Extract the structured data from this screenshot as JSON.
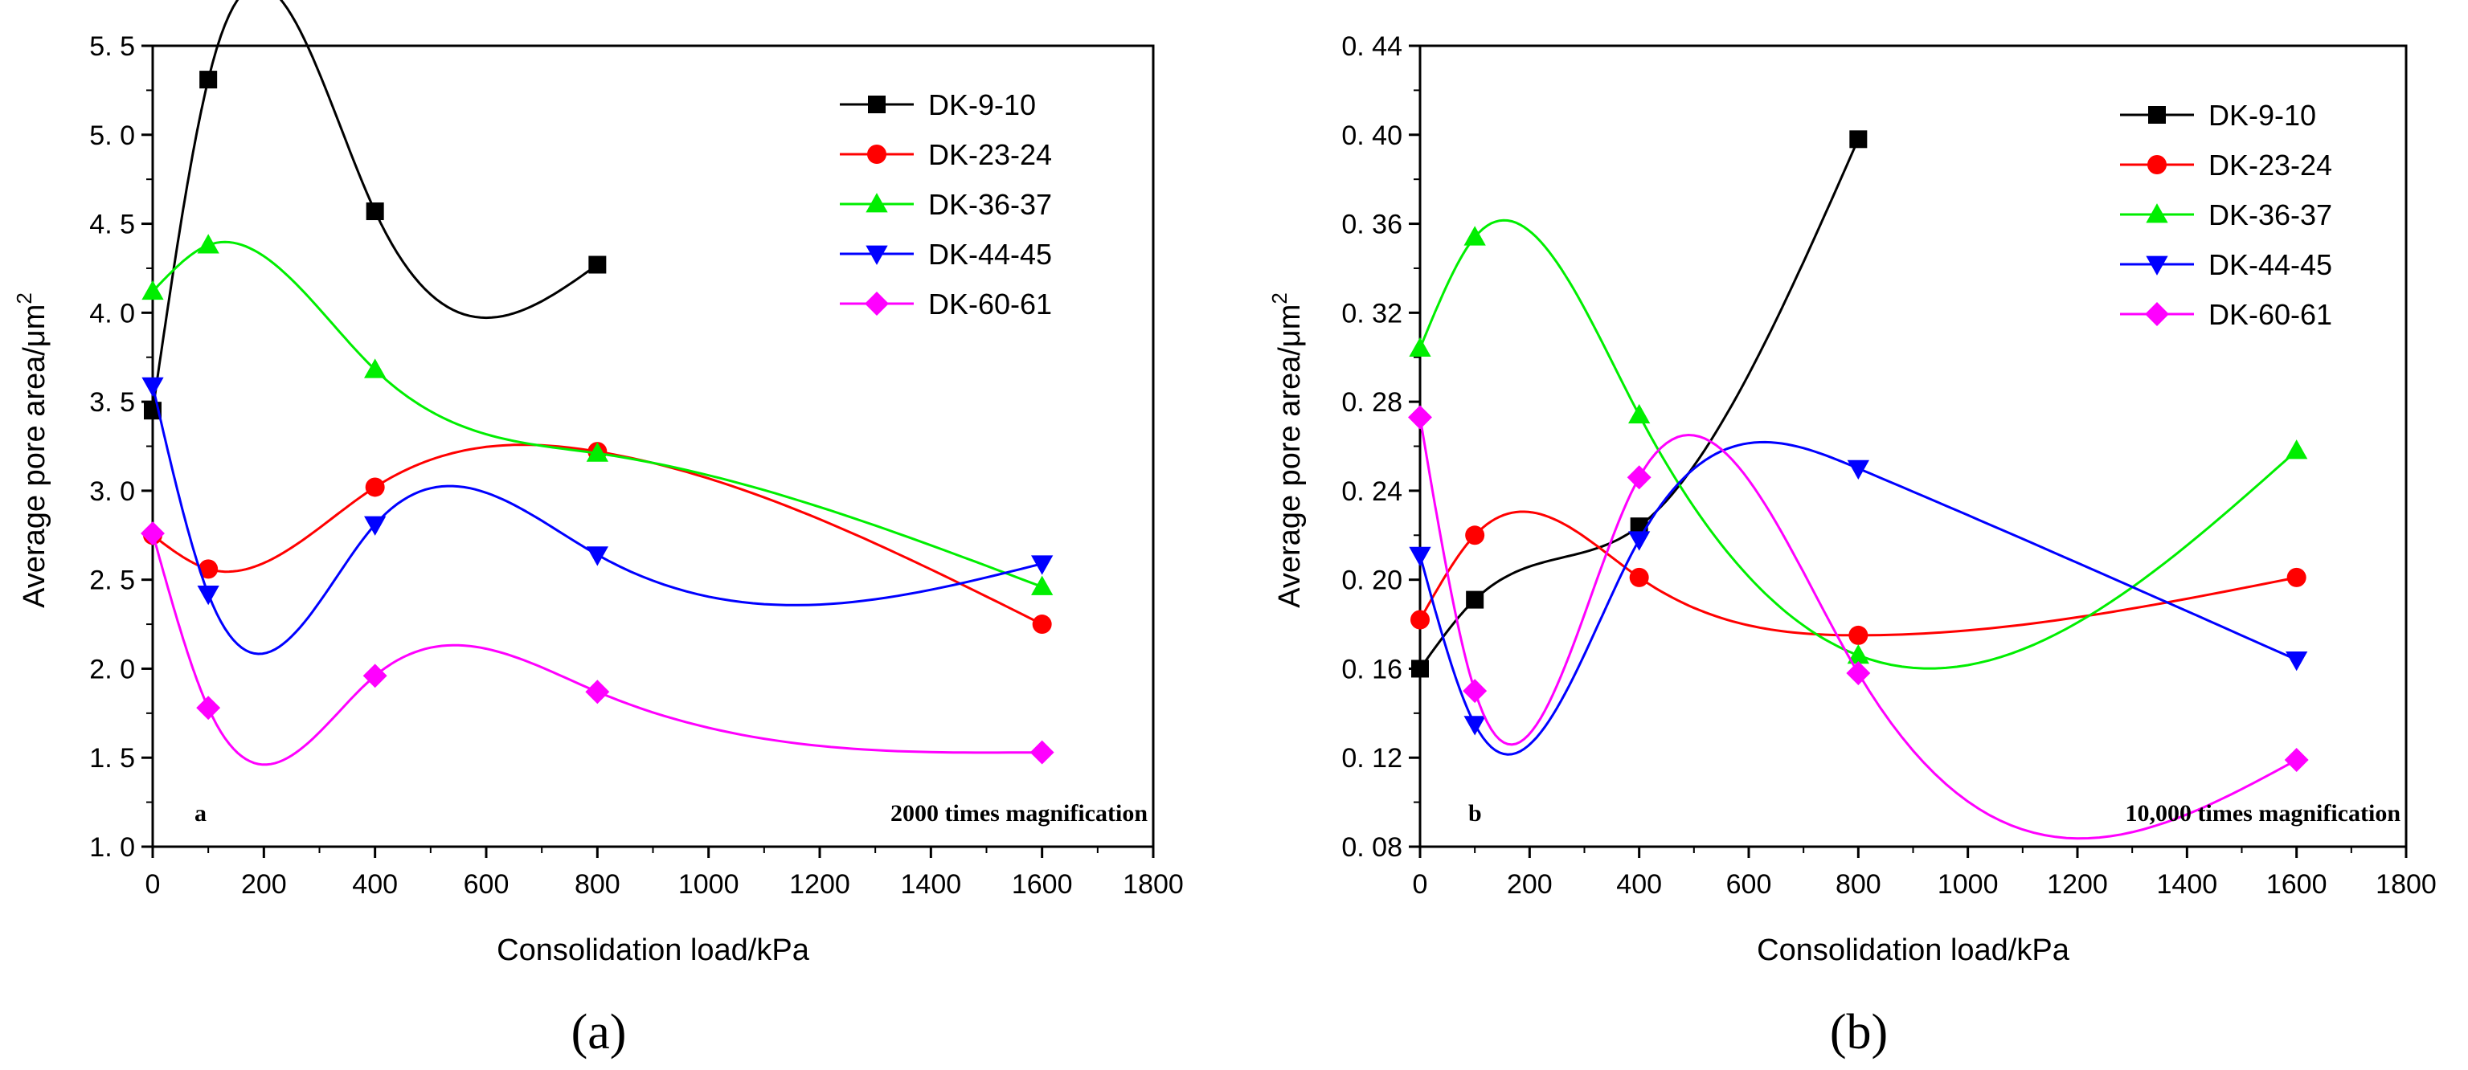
{
  "chart_data": [
    {
      "type": "scatter",
      "panel_letter": "a",
      "caption": "(a)",
      "annotation": "2000 times magnification",
      "xlabel": "Consolidation load/kPa",
      "ylabel": "Average pore area/μm",
      "ylabel_sup": "2",
      "xlim": [
        0,
        1800
      ],
      "ylim": [
        1.0,
        5.5
      ],
      "xticks": [
        0,
        200,
        400,
        600,
        800,
        1000,
        1200,
        1400,
        1600,
        1800
      ],
      "xtick_labels": [
        "0",
        "200",
        "400",
        "600",
        "800",
        "1000",
        "1200",
        "1400",
        "1600",
        "1800"
      ],
      "yticks": [
        1.0,
        1.5,
        2.0,
        2.5,
        3.0,
        3.5,
        4.0,
        4.5,
        5.0,
        5.5
      ],
      "ytick_labels": [
        "1. 0",
        "1. 5",
        "2. 0",
        "2. 5",
        "3. 0",
        "3. 5",
        "4. 0",
        "4. 5",
        "5. 0",
        "5. 5"
      ],
      "legend_position": "top-right",
      "series": [
        {
          "name": "DK-9-10",
          "color": "#000000",
          "marker": "square",
          "x": [
            0,
            100,
            400,
            800
          ],
          "y": [
            3.45,
            5.31,
            4.57,
            4.27
          ]
        },
        {
          "name": "DK-23-24",
          "color": "#ff0000",
          "marker": "circle",
          "x": [
            0,
            100,
            400,
            800,
            1600
          ],
          "y": [
            2.75,
            2.56,
            3.02,
            3.22,
            2.25
          ]
        },
        {
          "name": "DK-36-37",
          "color": "#00ee00",
          "marker": "triangle-up",
          "x": [
            0,
            100,
            400,
            800,
            1600
          ],
          "y": [
            4.12,
            4.38,
            3.68,
            3.21,
            2.46
          ]
        },
        {
          "name": "DK-44-45",
          "color": "#0000ff",
          "marker": "triangle-down",
          "x": [
            0,
            100,
            400,
            800,
            1600
          ],
          "y": [
            3.59,
            2.42,
            2.81,
            2.64,
            2.59
          ]
        },
        {
          "name": "DK-60-61",
          "color": "#ff00ff",
          "marker": "diamond",
          "x": [
            0,
            100,
            400,
            800,
            1600
          ],
          "y": [
            2.76,
            1.78,
            1.96,
            1.87,
            1.53
          ]
        }
      ]
    },
    {
      "type": "scatter",
      "panel_letter": "b",
      "caption": "(b)",
      "annotation": "10,000 times magnification",
      "xlabel": "Consolidation load/kPa",
      "ylabel": "Average pore area/μm",
      "ylabel_sup": "2",
      "xlim": [
        0,
        1800
      ],
      "ylim": [
        0.08,
        0.44
      ],
      "xticks": [
        0,
        200,
        400,
        600,
        800,
        1000,
        1200,
        1400,
        1600,
        1800
      ],
      "xtick_labels": [
        "0",
        "200",
        "400",
        "600",
        "800",
        "1000",
        "1200",
        "1400",
        "1600",
        "1800"
      ],
      "yticks": [
        0.08,
        0.12,
        0.16,
        0.2,
        0.24,
        0.28,
        0.32,
        0.36,
        0.4,
        0.44
      ],
      "ytick_labels": [
        "0. 08",
        "0. 12",
        "0. 16",
        "0. 20",
        "0. 24",
        "0. 28",
        "0. 32",
        "0. 36",
        "0. 40",
        "0. 44"
      ],
      "legend_position": "top-right",
      "series": [
        {
          "name": "DK-9-10",
          "color": "#000000",
          "marker": "square",
          "x": [
            0,
            100,
            400,
            800
          ],
          "y": [
            0.16,
            0.191,
            0.224,
            0.398
          ]
        },
        {
          "name": "DK-23-24",
          "color": "#ff0000",
          "marker": "circle",
          "x": [
            0,
            100,
            400,
            800,
            1600
          ],
          "y": [
            0.182,
            0.22,
            0.201,
            0.175,
            0.201
          ]
        },
        {
          "name": "DK-36-37",
          "color": "#00ee00",
          "marker": "triangle-up",
          "x": [
            0,
            100,
            400,
            800,
            1600
          ],
          "y": [
            0.304,
            0.354,
            0.274,
            0.166,
            0.258
          ]
        },
        {
          "name": "DK-44-45",
          "color": "#0000ff",
          "marker": "triangle-down",
          "x": [
            0,
            100,
            400,
            800,
            1600
          ],
          "y": [
            0.211,
            0.135,
            0.218,
            0.25,
            0.164
          ]
        },
        {
          "name": "DK-60-61",
          "color": "#ff00ff",
          "marker": "diamond",
          "x": [
            0,
            100,
            400,
            800,
            1600
          ],
          "y": [
            0.273,
            0.15,
            0.246,
            0.158,
            0.119
          ]
        }
      ]
    }
  ]
}
